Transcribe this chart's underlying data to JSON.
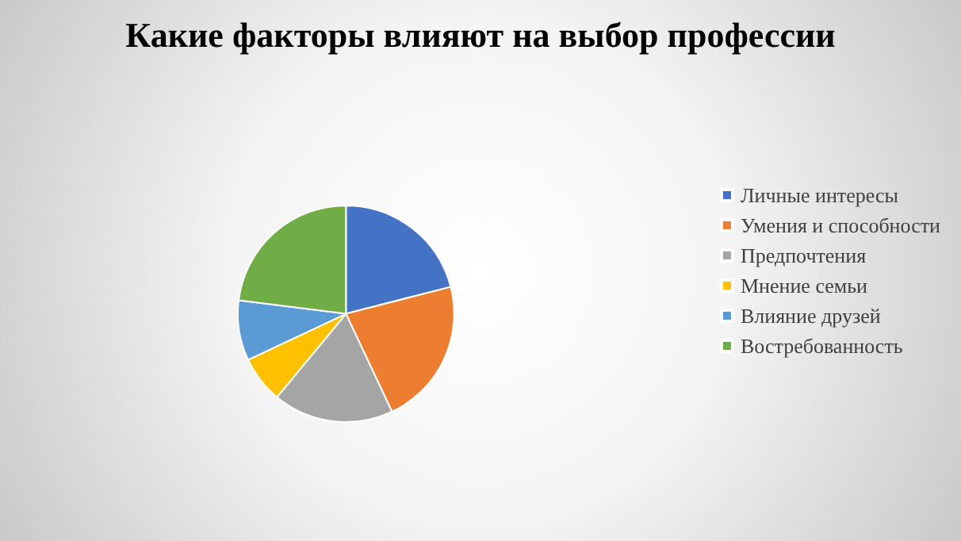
{
  "chart_data": {
    "type": "pie",
    "title": "Какие факторы влияют на выбор профессии",
    "categories": [
      "Личные интересы",
      "Умения и способности",
      "Предпочтения",
      "Мнение семьи",
      "Влияние друзей",
      "Востребованность"
    ],
    "values": [
      21,
      22,
      18,
      7,
      9,
      23
    ],
    "colors": [
      "#4472c4",
      "#ed7d31",
      "#a5a5a5",
      "#ffc000",
      "#5b9bd5",
      "#70ad47"
    ],
    "legend": "right"
  }
}
